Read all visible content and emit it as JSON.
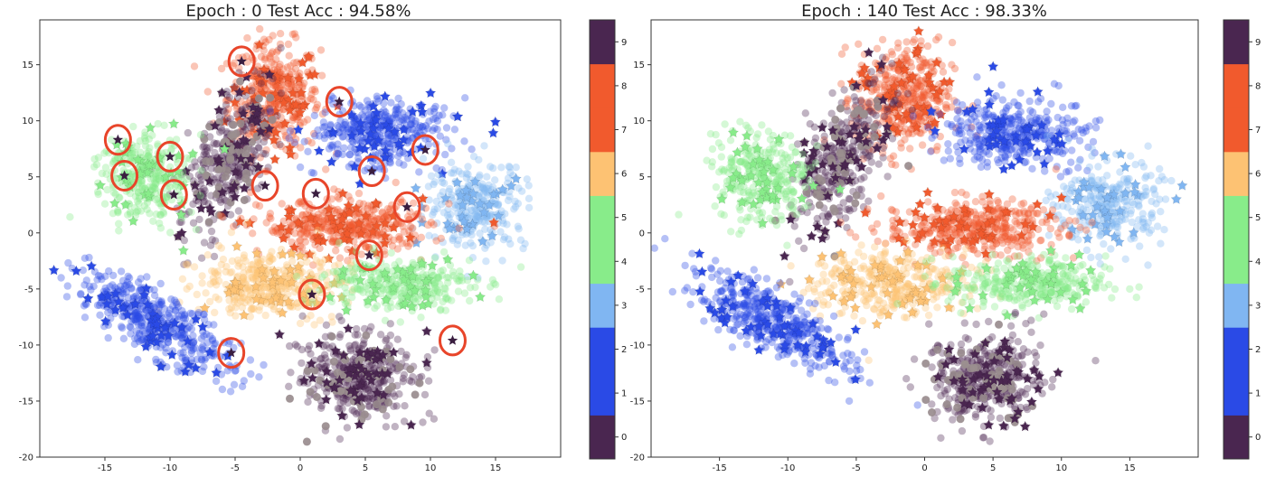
{
  "colors": {
    "c0": "#4a2650",
    "c1": "#2a4ae6",
    "c2": "#2a4ae6",
    "c3": "#80b6f2",
    "c4": "#88ec8a",
    "c5": "#88ec8a",
    "c6": "#fdc273",
    "c7": "#f15a2d",
    "c8": "#f15a2d",
    "c9": "#4a2650",
    "highlight_ring": "#e8452a",
    "grey_points": "#9b8f8f"
  },
  "chart_data": [
    {
      "type": "scatter",
      "title": "Epoch : 0  Test Acc : 94.58%",
      "xlabel": "",
      "ylabel": "",
      "xlim": [
        -20,
        20
      ],
      "ylim": [
        -20,
        19
      ],
      "xticks": [
        "-15",
        "-10",
        "-5",
        "0",
        "5",
        "10",
        "15"
      ],
      "yticks": [
        "15",
        "10",
        "5",
        "0",
        "-5",
        "-10",
        "-15",
        "-20"
      ],
      "grid": false,
      "colorbar": {
        "ticks": [
          "0",
          "1",
          "2",
          "3",
          "4",
          "5",
          "6",
          "7",
          "8",
          "9"
        ],
        "range": [
          -0.5,
          9.5
        ]
      },
      "clusters": [
        {
          "label": 8,
          "color": "c8",
          "center": [
            -2,
            12
          ],
          "spread": [
            3.2,
            4.5
          ],
          "n": 420
        },
        {
          "label": 9,
          "color": "c9",
          "center": [
            -5.5,
            6.5
          ],
          "spread": [
            2.4,
            6.2
          ],
          "n": 380,
          "tilt": -0.35
        },
        {
          "label": 5,
          "color": "c5",
          "center": [
            -12,
            5
          ],
          "spread": [
            3.2,
            3.6
          ],
          "n": 320
        },
        {
          "label": 2,
          "color": "c2",
          "center": [
            6,
            9
          ],
          "spread": [
            4.8,
            2.8
          ],
          "n": 380
        },
        {
          "label": 3,
          "color": "c3",
          "center": [
            13.5,
            2.5
          ],
          "spread": [
            3.5,
            3.5
          ],
          "n": 300
        },
        {
          "label": 7,
          "color": "c7",
          "center": [
            3.5,
            0.5
          ],
          "spread": [
            5.8,
            2.2
          ],
          "n": 430
        },
        {
          "label": 6,
          "color": "c6",
          "center": [
            -2.5,
            -4.5
          ],
          "spread": [
            5,
            2.6
          ],
          "n": 380
        },
        {
          "label": 4,
          "color": "c4",
          "center": [
            7.5,
            -4.5
          ],
          "spread": [
            5.2,
            2.2
          ],
          "n": 330
        },
        {
          "label": 0,
          "color": "c0",
          "center": [
            4.5,
            -13
          ],
          "spread": [
            3.8,
            3.6
          ],
          "n": 430
        },
        {
          "label": 1,
          "color": "c1",
          "center": [
            -11,
            -8
          ],
          "spread": [
            6.5,
            2.2
          ],
          "n": 450,
          "tilt": -0.62
        }
      ],
      "highlighted_points": [
        [
          -4.5,
          15.3
        ],
        [
          3,
          11.7
        ],
        [
          -14,
          8.3
        ],
        [
          -10,
          6.8
        ],
        [
          -13.5,
          5.1
        ],
        [
          -9.7,
          3.4
        ],
        [
          -2.7,
          4.2
        ],
        [
          1.2,
          3.5
        ],
        [
          5.5,
          5.5
        ],
        [
          9.6,
          7.4
        ],
        [
          8.2,
          2.3
        ],
        [
          5.3,
          -2
        ],
        [
          0.9,
          -5.5
        ],
        [
          -5.3,
          -10.7
        ],
        [
          11.7,
          -9.6
        ]
      ]
    },
    {
      "type": "scatter",
      "title": "Epoch : 140  Test Acc : 98.33%",
      "xlabel": "",
      "ylabel": "",
      "xlim": [
        -20,
        20
      ],
      "ylim": [
        -20,
        19
      ],
      "xticks": [
        "-15",
        "-10",
        "-5",
        "0",
        "5",
        "10",
        "15"
      ],
      "yticks": [
        "15",
        "10",
        "5",
        "0",
        "-5",
        "-10",
        "-15",
        "-20"
      ],
      "grid": false,
      "colorbar": {
        "ticks": [
          "0",
          "1",
          "2",
          "3",
          "4",
          "5",
          "6",
          "7",
          "8",
          "9"
        ],
        "range": [
          -0.5,
          9.5
        ]
      },
      "clusters": [
        {
          "label": 8,
          "color": "c8",
          "center": [
            -1.5,
            12
          ],
          "spread": [
            3.2,
            4.5
          ],
          "n": 420
        },
        {
          "label": 9,
          "color": "c9",
          "center": [
            -6,
            6.5
          ],
          "spread": [
            2.4,
            6.2
          ],
          "n": 380,
          "tilt": -0.35
        },
        {
          "label": 5,
          "color": "c5",
          "center": [
            -12,
            5
          ],
          "spread": [
            3.2,
            3.6
          ],
          "n": 320
        },
        {
          "label": 2,
          "color": "c2",
          "center": [
            6.5,
            9
          ],
          "spread": [
            4.8,
            2.8
          ],
          "n": 380
        },
        {
          "label": 3,
          "color": "c3",
          "center": [
            13.5,
            2.5
          ],
          "spread": [
            3.5,
            3.5
          ],
          "n": 300
        },
        {
          "label": 7,
          "color": "c7",
          "center": [
            3.5,
            0.5
          ],
          "spread": [
            5.8,
            2.2
          ],
          "n": 430
        },
        {
          "label": 6,
          "color": "c6",
          "center": [
            -2.5,
            -4.5
          ],
          "spread": [
            5,
            2.6
          ],
          "n": 380
        },
        {
          "label": 4,
          "color": "c4",
          "center": [
            7.5,
            -4.5
          ],
          "spread": [
            5.2,
            2.2
          ],
          "n": 330
        },
        {
          "label": 0,
          "color": "c0",
          "center": [
            4.5,
            -13
          ],
          "spread": [
            3.8,
            3.6
          ],
          "n": 430
        },
        {
          "label": 1,
          "color": "c1",
          "center": [
            -11,
            -8
          ],
          "spread": [
            6.5,
            2.2
          ],
          "n": 450,
          "tilt": -0.62
        }
      ],
      "highlighted_points": []
    }
  ]
}
